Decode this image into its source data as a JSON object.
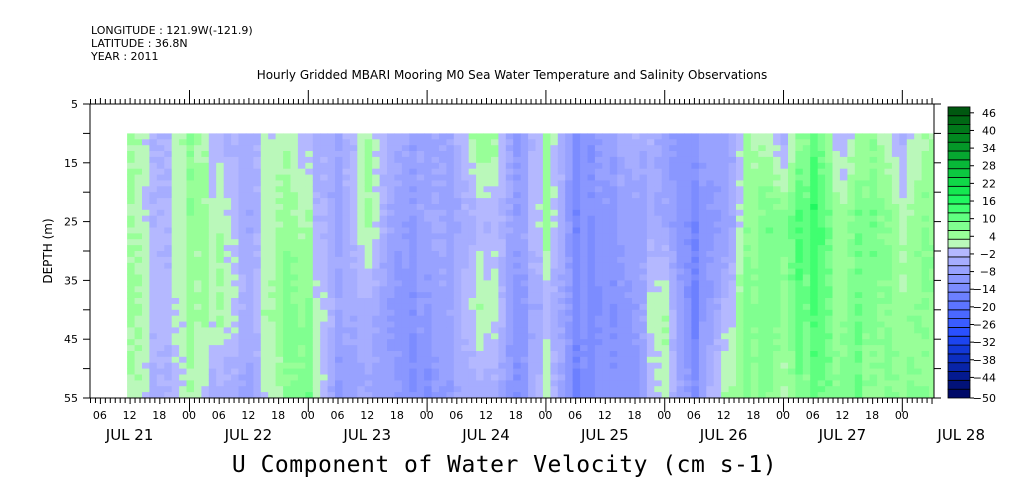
{
  "header": {
    "longitude": "LONGITUDE : 121.9W(-121.9)",
    "latitude": "LATITUDE : 36.8N",
    "year": "YEAR : 2011",
    "title": "Hourly Gridded MBARI Mooring M0 Sea Water Temperature and Salinity Observations"
  },
  "chart_data": {
    "type": "heatmap",
    "title": "Hourly Gridded MBARI Mooring M0 Sea Water Temperature and Salinity Observations",
    "xlabel": "U Component of Water Velocity (cm s-1)",
    "ylabel": "DEPTH (m)",
    "x_units": "hours since JUL 21 00:00 2011",
    "xlim": [
      4,
      174.5
    ],
    "ylim": [
      5,
      55
    ],
    "y_inverted": true,
    "yticks": [
      5,
      15,
      25,
      35,
      45,
      55
    ],
    "x_hour_labels": [
      "06",
      "12",
      "18",
      "00",
      "06",
      "12",
      "18",
      "00",
      "06",
      "12",
      "18",
      "00",
      "06",
      "12",
      "18",
      "00",
      "06",
      "12",
      "18",
      "00",
      "06",
      "12",
      "18",
      "00",
      "06",
      "12",
      "18",
      "00"
    ],
    "x_day_labels": [
      "JUL 21",
      "JUL 22",
      "JUL 23",
      "JUL 24",
      "JUL 25",
      "JUL 26",
      "JUL 27",
      "JUL 28"
    ],
    "data_time_range": [
      11.5,
      174.5
    ],
    "depths": [
      10,
      25,
      40,
      55
    ],
    "times": [
      12,
      18,
      24,
      30,
      36,
      42,
      48,
      54,
      60,
      66,
      72,
      78,
      84,
      90,
      96,
      102,
      108,
      114,
      120,
      126,
      132,
      138,
      144,
      150,
      156,
      162,
      168,
      174
    ],
    "values": [
      [
        6,
        5,
        6,
        5
      ],
      [
        -4,
        -3,
        -2,
        -4
      ],
      [
        6,
        5,
        3,
        2
      ],
      [
        -3,
        2,
        3,
        -5
      ],
      [
        -5,
        -6,
        -4,
        -8
      ],
      [
        3,
        4,
        6,
        3
      ],
      [
        -3,
        2,
        6,
        8
      ],
      [
        -6,
        -8,
        -6,
        -10
      ],
      [
        4,
        6,
        -2,
        -4
      ],
      [
        -6,
        -10,
        -12,
        -10
      ],
      [
        -8,
        -6,
        -10,
        -12
      ],
      [
        -4,
        -6,
        -4,
        -6
      ],
      [
        8,
        -2,
        4,
        -4
      ],
      [
        -10,
        -8,
        -10,
        -12
      ],
      [
        3,
        4,
        -3,
        2
      ],
      [
        -12,
        -14,
        -12,
        -16
      ],
      [
        -8,
        -10,
        -12,
        -10
      ],
      [
        -4,
        -8,
        -10,
        -12
      ],
      [
        -6,
        -4,
        6,
        4
      ],
      [
        -10,
        -14,
        -16,
        -12
      ],
      [
        -6,
        -8,
        -2,
        4
      ],
      [
        4,
        6,
        8,
        6
      ],
      [
        -4,
        8,
        6,
        4
      ],
      [
        10,
        14,
        12,
        8
      ],
      [
        -2,
        4,
        6,
        8
      ],
      [
        6,
        10,
        8,
        6
      ],
      [
        -4,
        2,
        4,
        6
      ],
      [
        4,
        6,
        6,
        4
      ]
    ],
    "colorbar": {
      "min": -50,
      "max": 49,
      "step": 3,
      "labels": [
        46,
        40,
        34,
        28,
        22,
        16,
        10,
        4,
        -2,
        -8,
        -14,
        -20,
        -26,
        -32,
        -38,
        -44,
        -50
      ]
    }
  }
}
